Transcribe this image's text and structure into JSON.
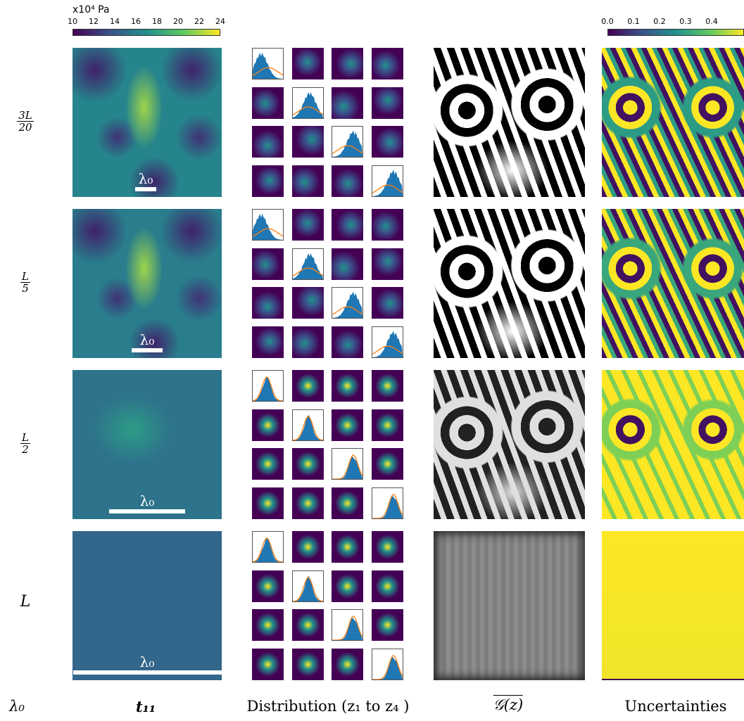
{
  "colorbars": {
    "t11": {
      "unit": "x10⁴ Pa",
      "ticks": [
        "10",
        "12",
        "14",
        "16",
        "18",
        "20",
        "22",
        "24"
      ]
    },
    "uncertainty": {
      "ticks": [
        "0.0",
        "0.1",
        "0.2",
        "0.3",
        "0.4"
      ]
    }
  },
  "rows": [
    {
      "label_num": "3L",
      "label_den": "20",
      "label_plain": "",
      "lambda": "λ₀",
      "field_mean": 0.45,
      "gray_contrast": 1.0,
      "unc_level": 0.55
    },
    {
      "label_num": "L",
      "label_den": "5",
      "label_plain": "",
      "lambda": "λ₀",
      "field_mean": 0.42,
      "gray_contrast": 1.0,
      "unc_level": 0.6
    },
    {
      "label_num": "L",
      "label_den": "2",
      "label_plain": "",
      "lambda": "λ₀",
      "field_mean": 0.38,
      "gray_contrast": 0.75,
      "unc_level": 0.8
    },
    {
      "label_num": "",
      "label_den": "",
      "label_plain": "L",
      "lambda": "λ₀",
      "field_mean": 0.33,
      "gray_contrast": 0.15,
      "unc_level": 0.95
    }
  ],
  "columns": {
    "c0": "λ₀",
    "c1": "t₁₁",
    "c2": "Distribution (z₁ to z₄ )",
    "c3": "𝒢(z)",
    "c4": "Uncertainties"
  },
  "colors": {
    "viridis_dark": "#440154",
    "viridis_mid": "#21918c",
    "viridis_yellow": "#fde725",
    "hist_blue": "#1f77b4",
    "curve_orange": "#ff7f0e"
  }
}
